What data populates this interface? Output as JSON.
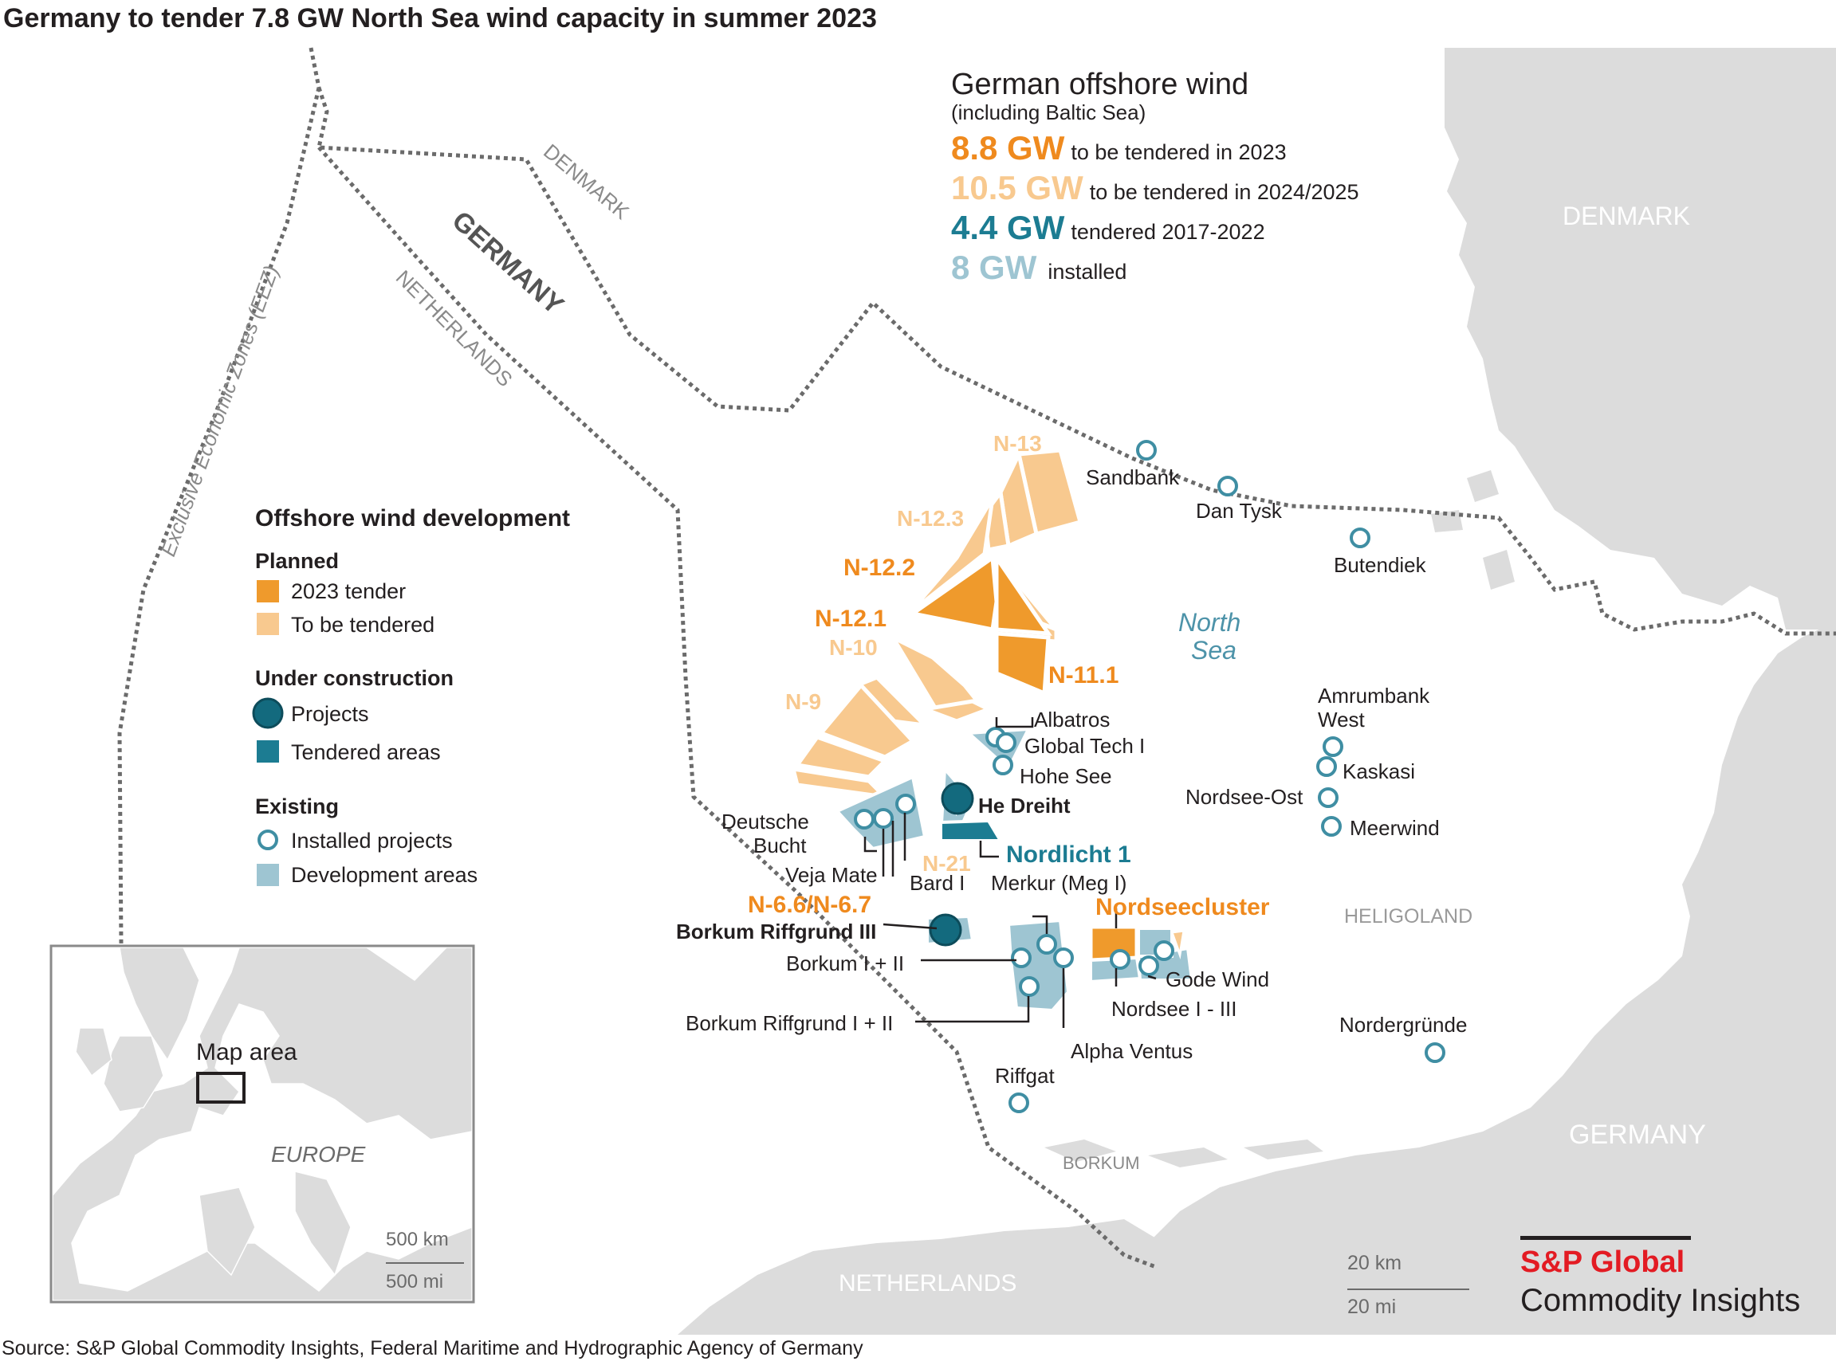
{
  "title": "Germany to tender 7.8 GW North Sea wind capacity in summer 2023",
  "source": "Source: S&P Global Commodity Insights, Federal Maritime and Hydrographic Agency of Germany",
  "colors": {
    "tender_2023": "#ef9a2c",
    "to_be_tendered": "#f8c98f",
    "under_construction": "#1c7c92",
    "construction_dark": "#136a7e",
    "development": "#9ec5d2",
    "installed_stroke": "#3f8ea3",
    "land": "#dcdcdc",
    "boundary": "#6b6b6b",
    "brand_red": "#e31b23"
  },
  "summary": {
    "heading": "German offshore wind",
    "subheading": "(including Baltic Sea)",
    "rows": [
      {
        "value": "8.8 GW",
        "text": "to be tendered in 2023",
        "color": "#ef8a1e"
      },
      {
        "value": "10.5 GW",
        "text": "to be tendered in 2024/2025",
        "color": "#f8c98f"
      },
      {
        "value": "4.4 GW",
        "text": "tendered 2017-2022",
        "color": "#1c7c92"
      },
      {
        "value": "8 GW",
        "text": "installed",
        "color": "#9ec5d2"
      }
    ]
  },
  "legend": {
    "title": "Offshore wind development",
    "planned": "Planned",
    "tender_2023": "2023 tender",
    "to_be_tendered": "To be tendered",
    "under_construction": "Under construction",
    "projects": "Projects",
    "tendered_areas": "Tendered areas",
    "existing": "Existing",
    "installed_projects": "Installed projects",
    "development_areas": "Development areas"
  },
  "regions": {
    "denmark": "DENMARK",
    "germany": "GERMANY",
    "netherlands": "NETHERLANDS",
    "heligoland": "HELIGOLAND",
    "borkum": "BORKUM",
    "north_sea_1": "North",
    "north_sea_2": "Sea",
    "eez_denmark": "DENMARK",
    "eez_germany": "GERMANY",
    "eez_netherlands": "NETHERLANDS",
    "eez_label": "Exclusive Economic Zones (EEZ)"
  },
  "zones": {
    "n13": "N-13",
    "n123": "N-12.3",
    "n122": "N-12.2",
    "n121": "N-12.1",
    "n10": "N-10",
    "n111": "N-11.1",
    "n9": "N-9",
    "n21": "N-21",
    "n66": "N-6.6/N-6.7",
    "nordseecluster": "Nordseecluster",
    "nordlicht": "Nordlicht 1"
  },
  "projects": {
    "sandbank": "Sandbank",
    "dantysk": "Dan Tysk",
    "butendiek": "Butendiek",
    "amrumbank_1": "Amrumbank",
    "amrumbank_2": "West",
    "kaskasi": "Kaskasi",
    "nordsee_ost": "Nordsee-Ost",
    "meerwind": "Meerwind",
    "albatros": "Albatros",
    "global_tech": "Global Tech I",
    "hohe_see": "Hohe See",
    "he_dreiht": "He Dreiht",
    "deutsche_1": "Deutsche",
    "deutsche_2": "Bucht",
    "veja_mate": "Veja Mate",
    "bard": "Bard I",
    "merkur": "Merkur (Meg I)",
    "borkum_riffgrund_3": "Borkum Riffgrund III",
    "borkum_1_2": "Borkum I + II",
    "borkum_riffgrund_1_2": "Borkum Riffgrund I + II",
    "alpha_ventus": "Alpha Ventus",
    "gode_wind": "Gode Wind",
    "nordsee_1_3": "Nordsee I - III",
    "riffgat": "Riffgat",
    "nordergrunde": "Nordergründe"
  },
  "scale": {
    "km": "20 km",
    "mi": "20 mi"
  },
  "inset": {
    "map_area": "Map area",
    "europe": "EUROPE",
    "km": "500 km",
    "mi": "500 mi"
  },
  "brand": {
    "line1": "S&P Global",
    "line2": "Commodity Insights"
  }
}
